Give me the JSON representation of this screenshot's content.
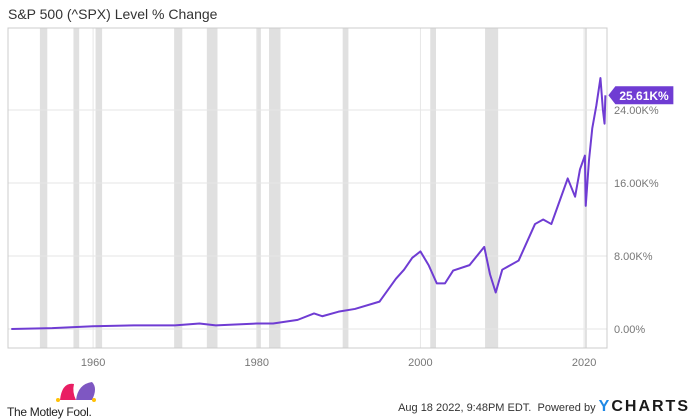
{
  "chart_data": {
    "type": "line",
    "title": "S&P 500 (^SPX) Level % Change",
    "xlim": [
      1949.6,
      2022.8
    ],
    "ylim": [
      -2,
      35
    ],
    "x_ticks": [
      1960,
      1980,
      2000,
      2020
    ],
    "y_ticks": [
      {
        "v": 0,
        "label": "0.00%"
      },
      {
        "v": 8,
        "label": "8.00K%"
      },
      {
        "v": 16,
        "label": "16.00K%"
      },
      {
        "v": 24,
        "label": "24.00K%"
      }
    ],
    "y_unit": "K%",
    "recessions": [
      [
        1953.5,
        1954.4
      ],
      [
        1957.6,
        1958.3
      ],
      [
        1960.3,
        1961.1
      ],
      [
        1969.9,
        1970.9
      ],
      [
        1973.9,
        1975.2
      ],
      [
        1980,
        1980.5
      ],
      [
        1981.5,
        1982.9
      ],
      [
        1990.5,
        1991.2
      ],
      [
        2001.2,
        2001.9
      ],
      [
        2007.9,
        2009.5
      ],
      [
        2020.1,
        2020.35
      ]
    ],
    "series": [
      {
        "name": "S&P 500 (^SPX) Level % Change",
        "color": "#6f3cd3",
        "x": [
          1950,
          1955,
          1960,
          1965,
          1970,
          1973,
          1975,
          1980,
          1982,
          1985,
          1987,
          1988,
          1990,
          1992,
          1995,
          1997,
          1998,
          1999,
          2000,
          2001,
          2002,
          2003,
          2004,
          2006,
          2007.8,
          2008.5,
          2009.2,
          2010,
          2011,
          2012,
          2013,
          2014,
          2015,
          2016,
          2017,
          2018,
          2018.9,
          2019.5,
          2020.1,
          2020.2,
          2020.6,
          2021,
          2021.5,
          2022.0,
          2022.3,
          2022.5,
          2022.6
        ],
        "y": [
          0,
          0.1,
          0.3,
          0.4,
          0.4,
          0.6,
          0.4,
          0.6,
          0.6,
          1.0,
          1.7,
          1.4,
          1.9,
          2.2,
          3.0,
          5.5,
          6.5,
          7.8,
          8.5,
          7.0,
          5.0,
          5.0,
          6.4,
          7.0,
          9.0,
          6.0,
          4.0,
          6.5,
          7.0,
          7.5,
          9.5,
          11.5,
          12.0,
          11.5,
          14.0,
          16.5,
          14.5,
          17.5,
          19.0,
          13.5,
          18.5,
          22.0,
          24.5,
          27.5,
          24.0,
          22.5,
          25.61
        ]
      }
    ],
    "last_value_label": "25.61K%"
  },
  "footer": {
    "brand": "The Motley Fool.",
    "timestamp": "Aug 18 2022, 9:48PM EDT.",
    "powered": "Powered by",
    "ycharts_y": "Y",
    "ycharts_rest": "CHARTS"
  },
  "colors": {
    "line": "#6f3cd3",
    "recession": "#e0e0e0",
    "grid": "#e6e6e6"
  }
}
